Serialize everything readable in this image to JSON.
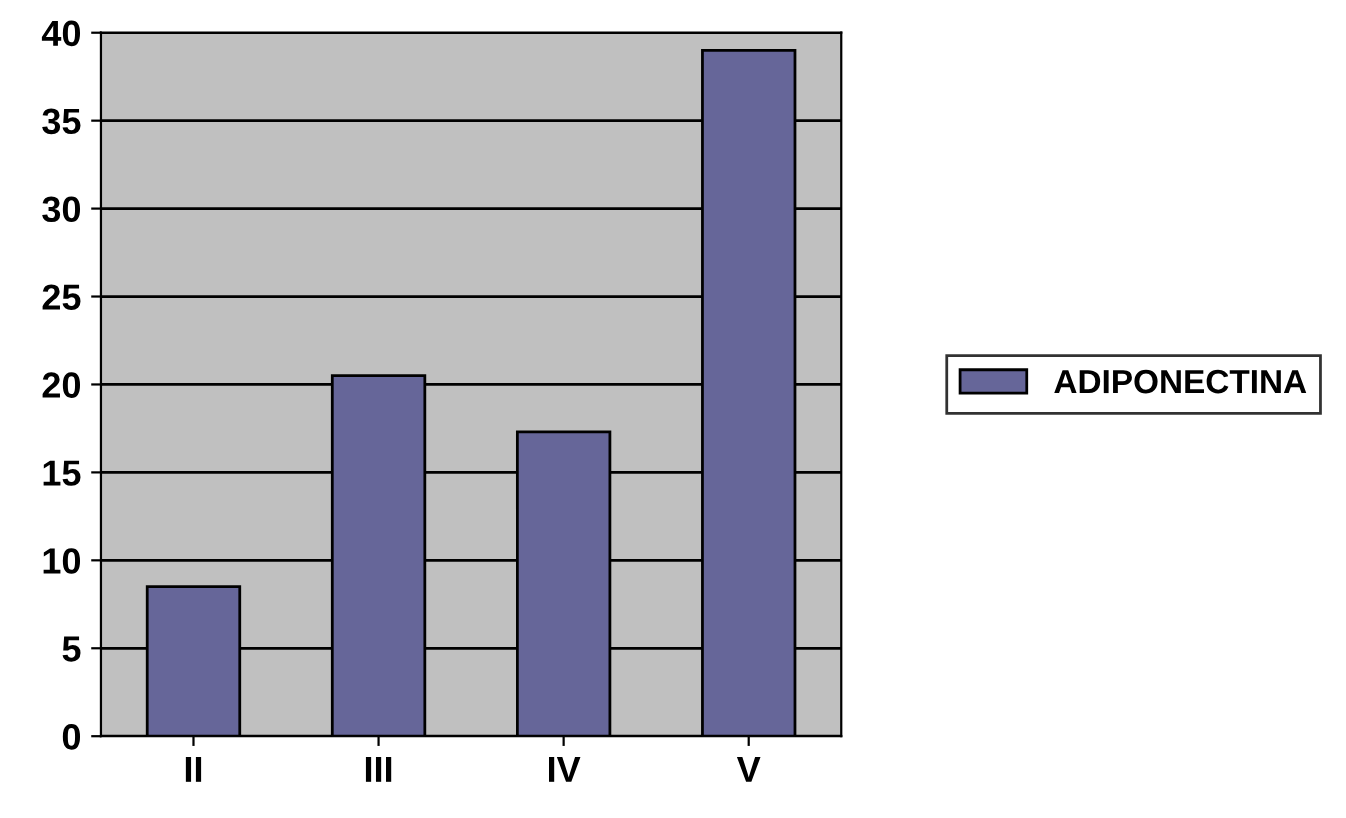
{
  "chart_data": {
    "type": "bar",
    "categories": [
      "II",
      "III",
      "IV",
      "V"
    ],
    "series": [
      {
        "name": "ADIPONECTINA",
        "color": "#666699",
        "values": [
          8.5,
          20.5,
          17.3,
          39
        ]
      }
    ],
    "ylim": [
      0,
      40
    ],
    "yticks": [
      0,
      5,
      10,
      15,
      20,
      25,
      30,
      35,
      40
    ],
    "grid": "y",
    "legend": "right"
  }
}
